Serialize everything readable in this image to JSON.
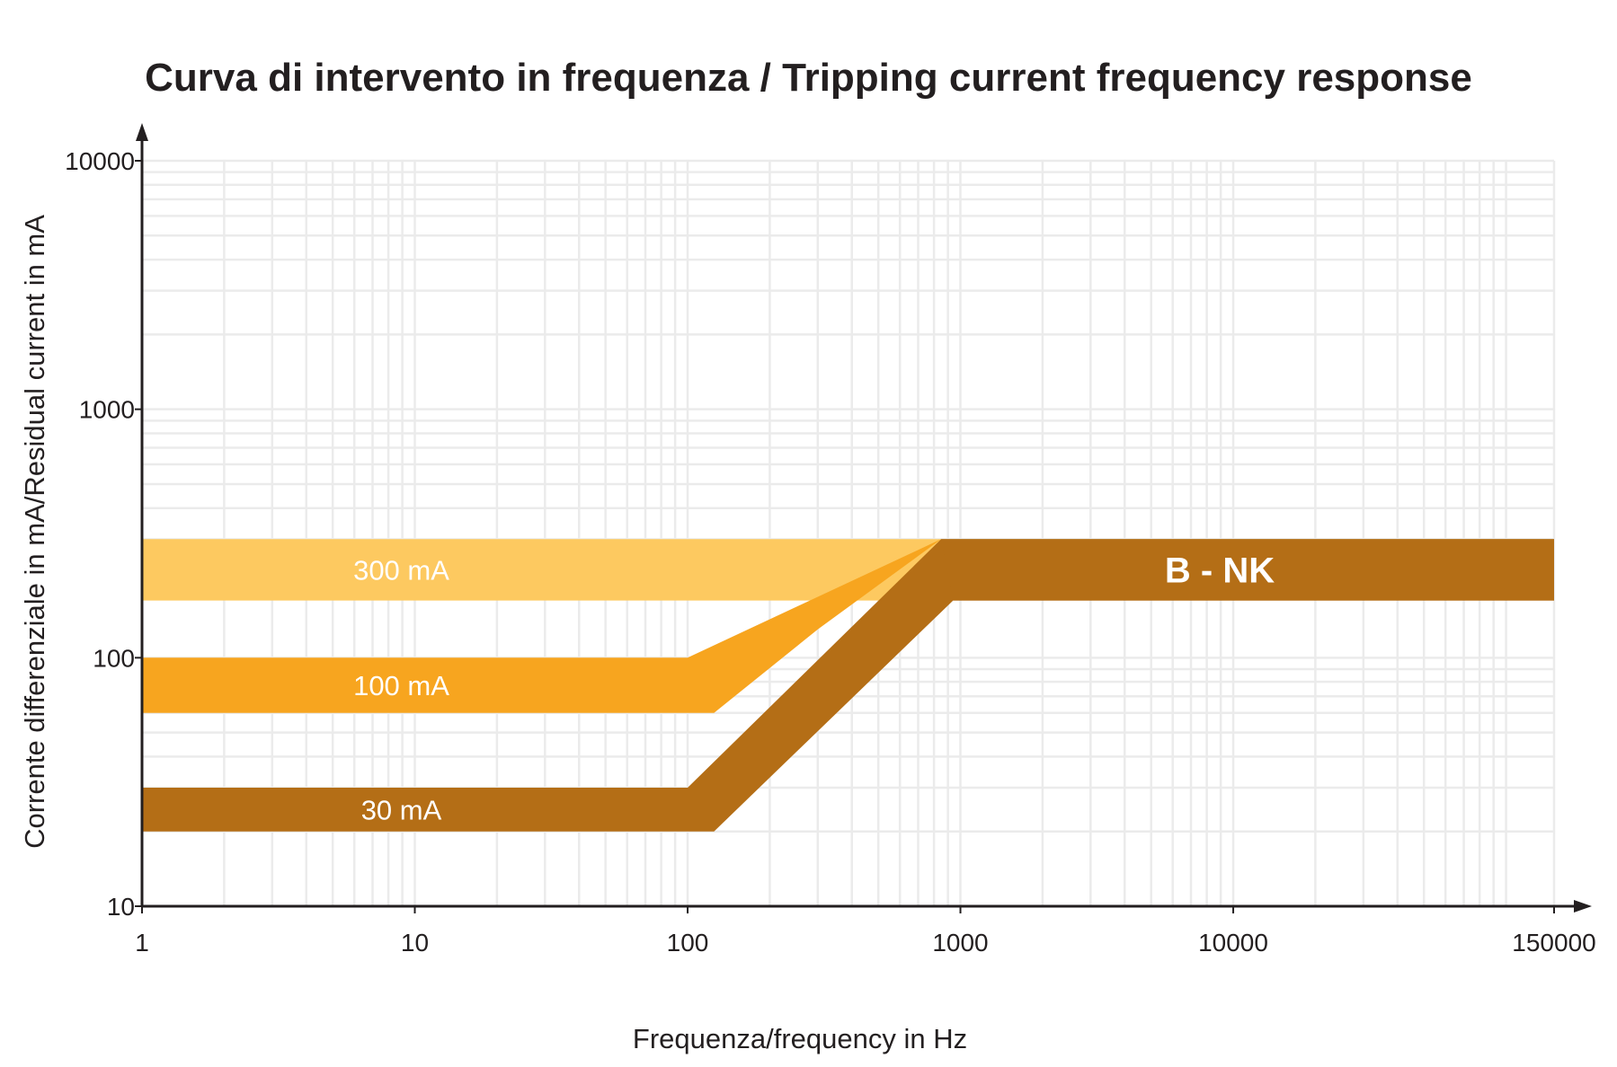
{
  "chart_data": {
    "type": "area",
    "title": "Curva di intervento in frequenza / Tripping current frequency response",
    "xlabel": "Frequenza/frequency in Hz",
    "ylabel": "Corrente differenziale in mA/Residual current in mA",
    "x_scale": "log",
    "y_scale": "log",
    "xlim": [
      1,
      150000
    ],
    "ylim": [
      10,
      10000
    ],
    "x_ticks": [
      "1",
      "10",
      "100",
      "1000",
      "10000",
      "150000"
    ],
    "y_ticks": [
      "10",
      "100",
      "1000",
      "10000"
    ],
    "grid": true,
    "series": [
      {
        "name": "300 mA",
        "color": "#fdc960",
        "upper": [
          [
            1,
            300
          ],
          [
            850,
            300
          ]
        ],
        "lower": [
          [
            1,
            170
          ],
          [
            850,
            170
          ]
        ]
      },
      {
        "name": "100 mA",
        "color": "#f7a51f",
        "upper": [
          [
            1,
            100
          ],
          [
            100,
            100
          ],
          [
            850,
            300
          ]
        ],
        "lower": [
          [
            1,
            60
          ],
          [
            125,
            60
          ],
          [
            300,
            130
          ]
        ]
      },
      {
        "name": "30 mA",
        "color": "#b46e16",
        "upper": [
          [
            1,
            30
          ],
          [
            100,
            30
          ],
          [
            850,
            300
          ],
          [
            150000,
            300
          ]
        ],
        "lower": [
          [
            1,
            20
          ],
          [
            125,
            20
          ],
          [
            940,
            170
          ],
          [
            150000,
            170
          ]
        ]
      },
      {
        "name": "B - NK",
        "color": "#b46e16",
        "upper": [
          [
            850,
            300
          ],
          [
            150000,
            300
          ]
        ],
        "lower": [
          [
            940,
            170
          ],
          [
            150000,
            170
          ]
        ]
      }
    ]
  }
}
